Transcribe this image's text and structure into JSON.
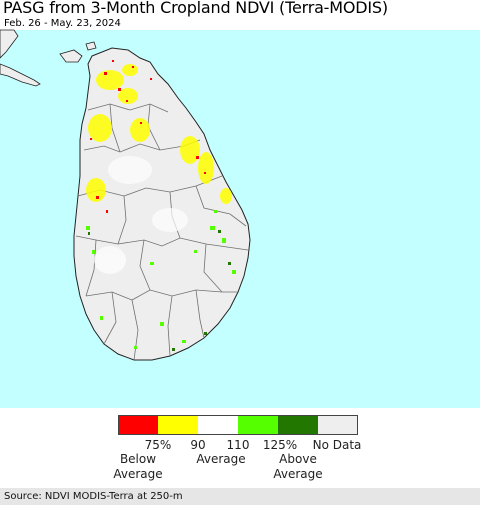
{
  "header": {
    "title": "PASG from 3-Month Cropland NDVI (Terra-MODIS)",
    "date_range": "Feb. 26 - May. 23, 2024"
  },
  "map": {
    "region": "Sri Lanka",
    "colors": {
      "ocean": "#c4ffff",
      "land_no_data": "#eeeeee",
      "boundary": "#707070",
      "coast": "#222222"
    }
  },
  "legend": {
    "classes": [
      {
        "color": "#ff0000"
      },
      {
        "color": "#ffff00"
      },
      {
        "color": "#ffffff"
      },
      {
        "color": "#55ff00"
      },
      {
        "color": "#227700"
      },
      {
        "color": "#eeeeee"
      }
    ],
    "ticks": [
      "75%",
      "90",
      "110",
      "125%"
    ],
    "no_data_label": "No Data",
    "below_line1": "Below",
    "below_line2": "Average",
    "average_label": "Average",
    "above_line1": "Above",
    "above_line2": "Average"
  },
  "footer": {
    "source": "Source: NDVI MODIS-Terra at 250-m"
  }
}
